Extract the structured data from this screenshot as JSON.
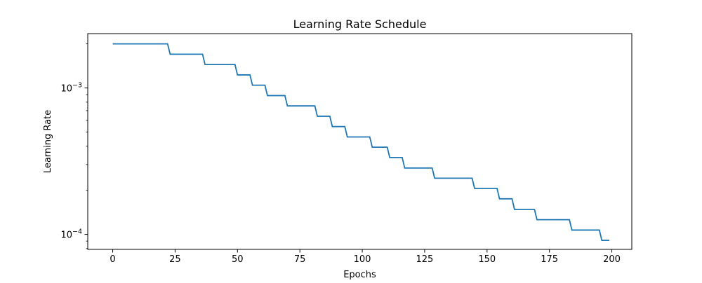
{
  "chart_data": {
    "type": "line",
    "title": "Learning Rate Schedule",
    "xlabel": "Epochs",
    "ylabel": "Learning Rate",
    "yscale": "log",
    "xlim": [
      -10,
      208
    ],
    "ylim": [
      7.9e-05,
      0.00235
    ],
    "grid": false,
    "legend": "none",
    "series_color": "#1f77b4",
    "x_ticks": [
      {
        "value": 0,
        "label": "0"
      },
      {
        "value": 25,
        "label": "25"
      },
      {
        "value": 50,
        "label": "50"
      },
      {
        "value": 75,
        "label": "75"
      },
      {
        "value": 100,
        "label": "100"
      },
      {
        "value": 125,
        "label": "125"
      },
      {
        "value": 150,
        "label": "150"
      },
      {
        "value": 175,
        "label": "175"
      },
      {
        "value": 200,
        "label": "200"
      }
    ],
    "y_major_ticks": [
      {
        "value": 0.0001,
        "base": "10",
        "exponent": "−4"
      },
      {
        "value": 0.001,
        "base": "10",
        "exponent": "−3"
      }
    ],
    "y_minor_ticks": [
      8e-05,
      9e-05,
      0.0002,
      0.0003,
      0.0004,
      0.0005,
      0.0006,
      0.0007,
      0.0008,
      0.0009,
      0.002
    ],
    "series": [
      {
        "x": [
          0,
          22,
          23,
          36,
          37,
          49,
          50,
          55,
          56,
          61,
          62,
          69,
          70,
          81,
          82,
          87,
          88,
          93,
          94,
          103,
          104,
          110,
          111,
          116,
          117,
          128,
          129,
          144,
          145,
          154,
          155,
          160,
          161,
          169,
          170,
          183,
          184,
          195,
          196,
          199
        ],
        "y": [
          0.002,
          0.002,
          0.0017,
          0.0017,
          0.001445,
          0.001445,
          0.001228,
          0.001228,
          0.001044,
          0.001044,
          0.000887,
          0.000887,
          0.000754,
          0.000754,
          0.000641,
          0.000641,
          0.000545,
          0.000545,
          0.000463,
          0.000463,
          0.000394,
          0.000394,
          0.000335,
          0.000335,
          0.000284,
          0.000284,
          0.000242,
          0.000242,
          0.000206,
          0.000206,
          0.000175,
          0.000175,
          0.000148,
          0.000148,
          0.000126,
          0.000126,
          0.000107,
          0.000107,
          9.1e-05,
          9.1e-05
        ]
      }
    ]
  }
}
